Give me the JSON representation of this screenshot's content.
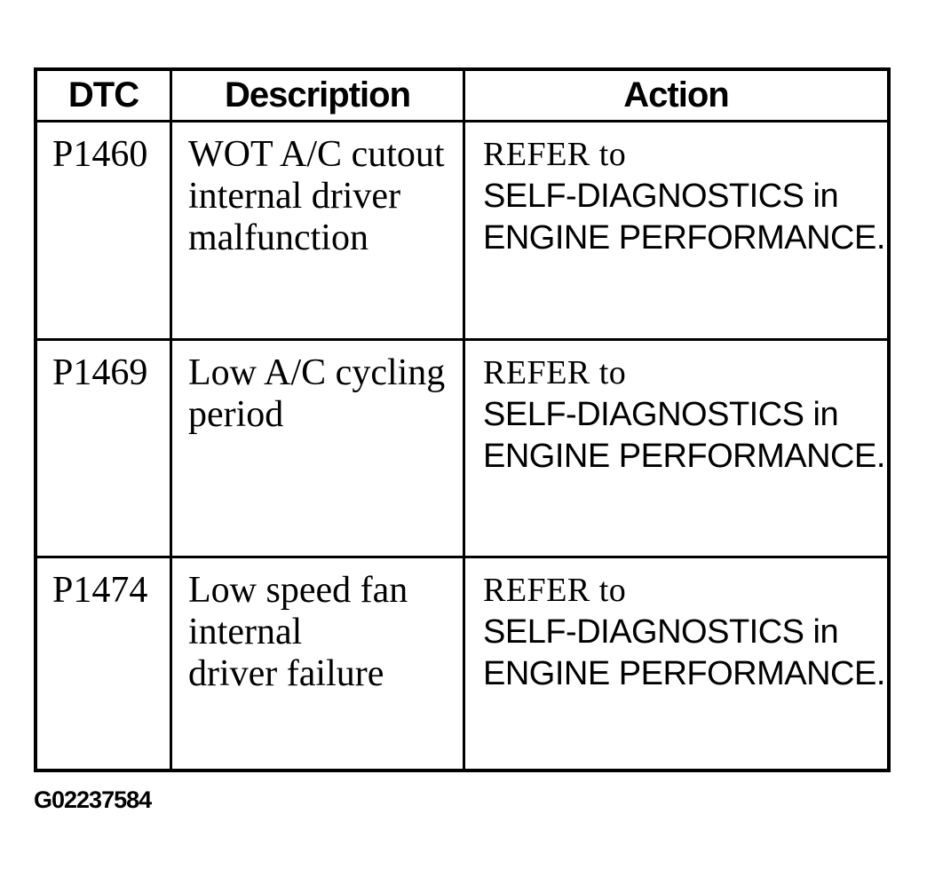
{
  "page": {
    "background": "#ffffff",
    "text_color": "#000000",
    "border_color": "#000000",
    "figure_id": "G02237584"
  },
  "table": {
    "columns": [
      {
        "key": "dtc",
        "label": "DTC"
      },
      {
        "key": "description",
        "label": "Description"
      },
      {
        "key": "action",
        "label": "Action"
      }
    ],
    "rows": [
      {
        "dtc": "P1460",
        "description_lines": [
          "WOT A/C cutout",
          "internal driver",
          "malfunction"
        ],
        "action_lines": [
          "REFER to",
          "SELF-DIAGNOSTICS in",
          "ENGINE PERFORMANCE."
        ]
      },
      {
        "dtc": "P1469",
        "description_lines": [
          "Low A/C cycling",
          "period"
        ],
        "action_lines": [
          "REFER to",
          "SELF-DIAGNOSTICS in",
          "ENGINE PERFORMANCE."
        ]
      },
      {
        "dtc": "P1474",
        "description_lines": [
          "Low speed fan",
          "internal",
          "driver failure"
        ],
        "action_lines": [
          "REFER to",
          "SELF-DIAGNOSTICS in",
          "ENGINE PERFORMANCE."
        ]
      }
    ]
  }
}
